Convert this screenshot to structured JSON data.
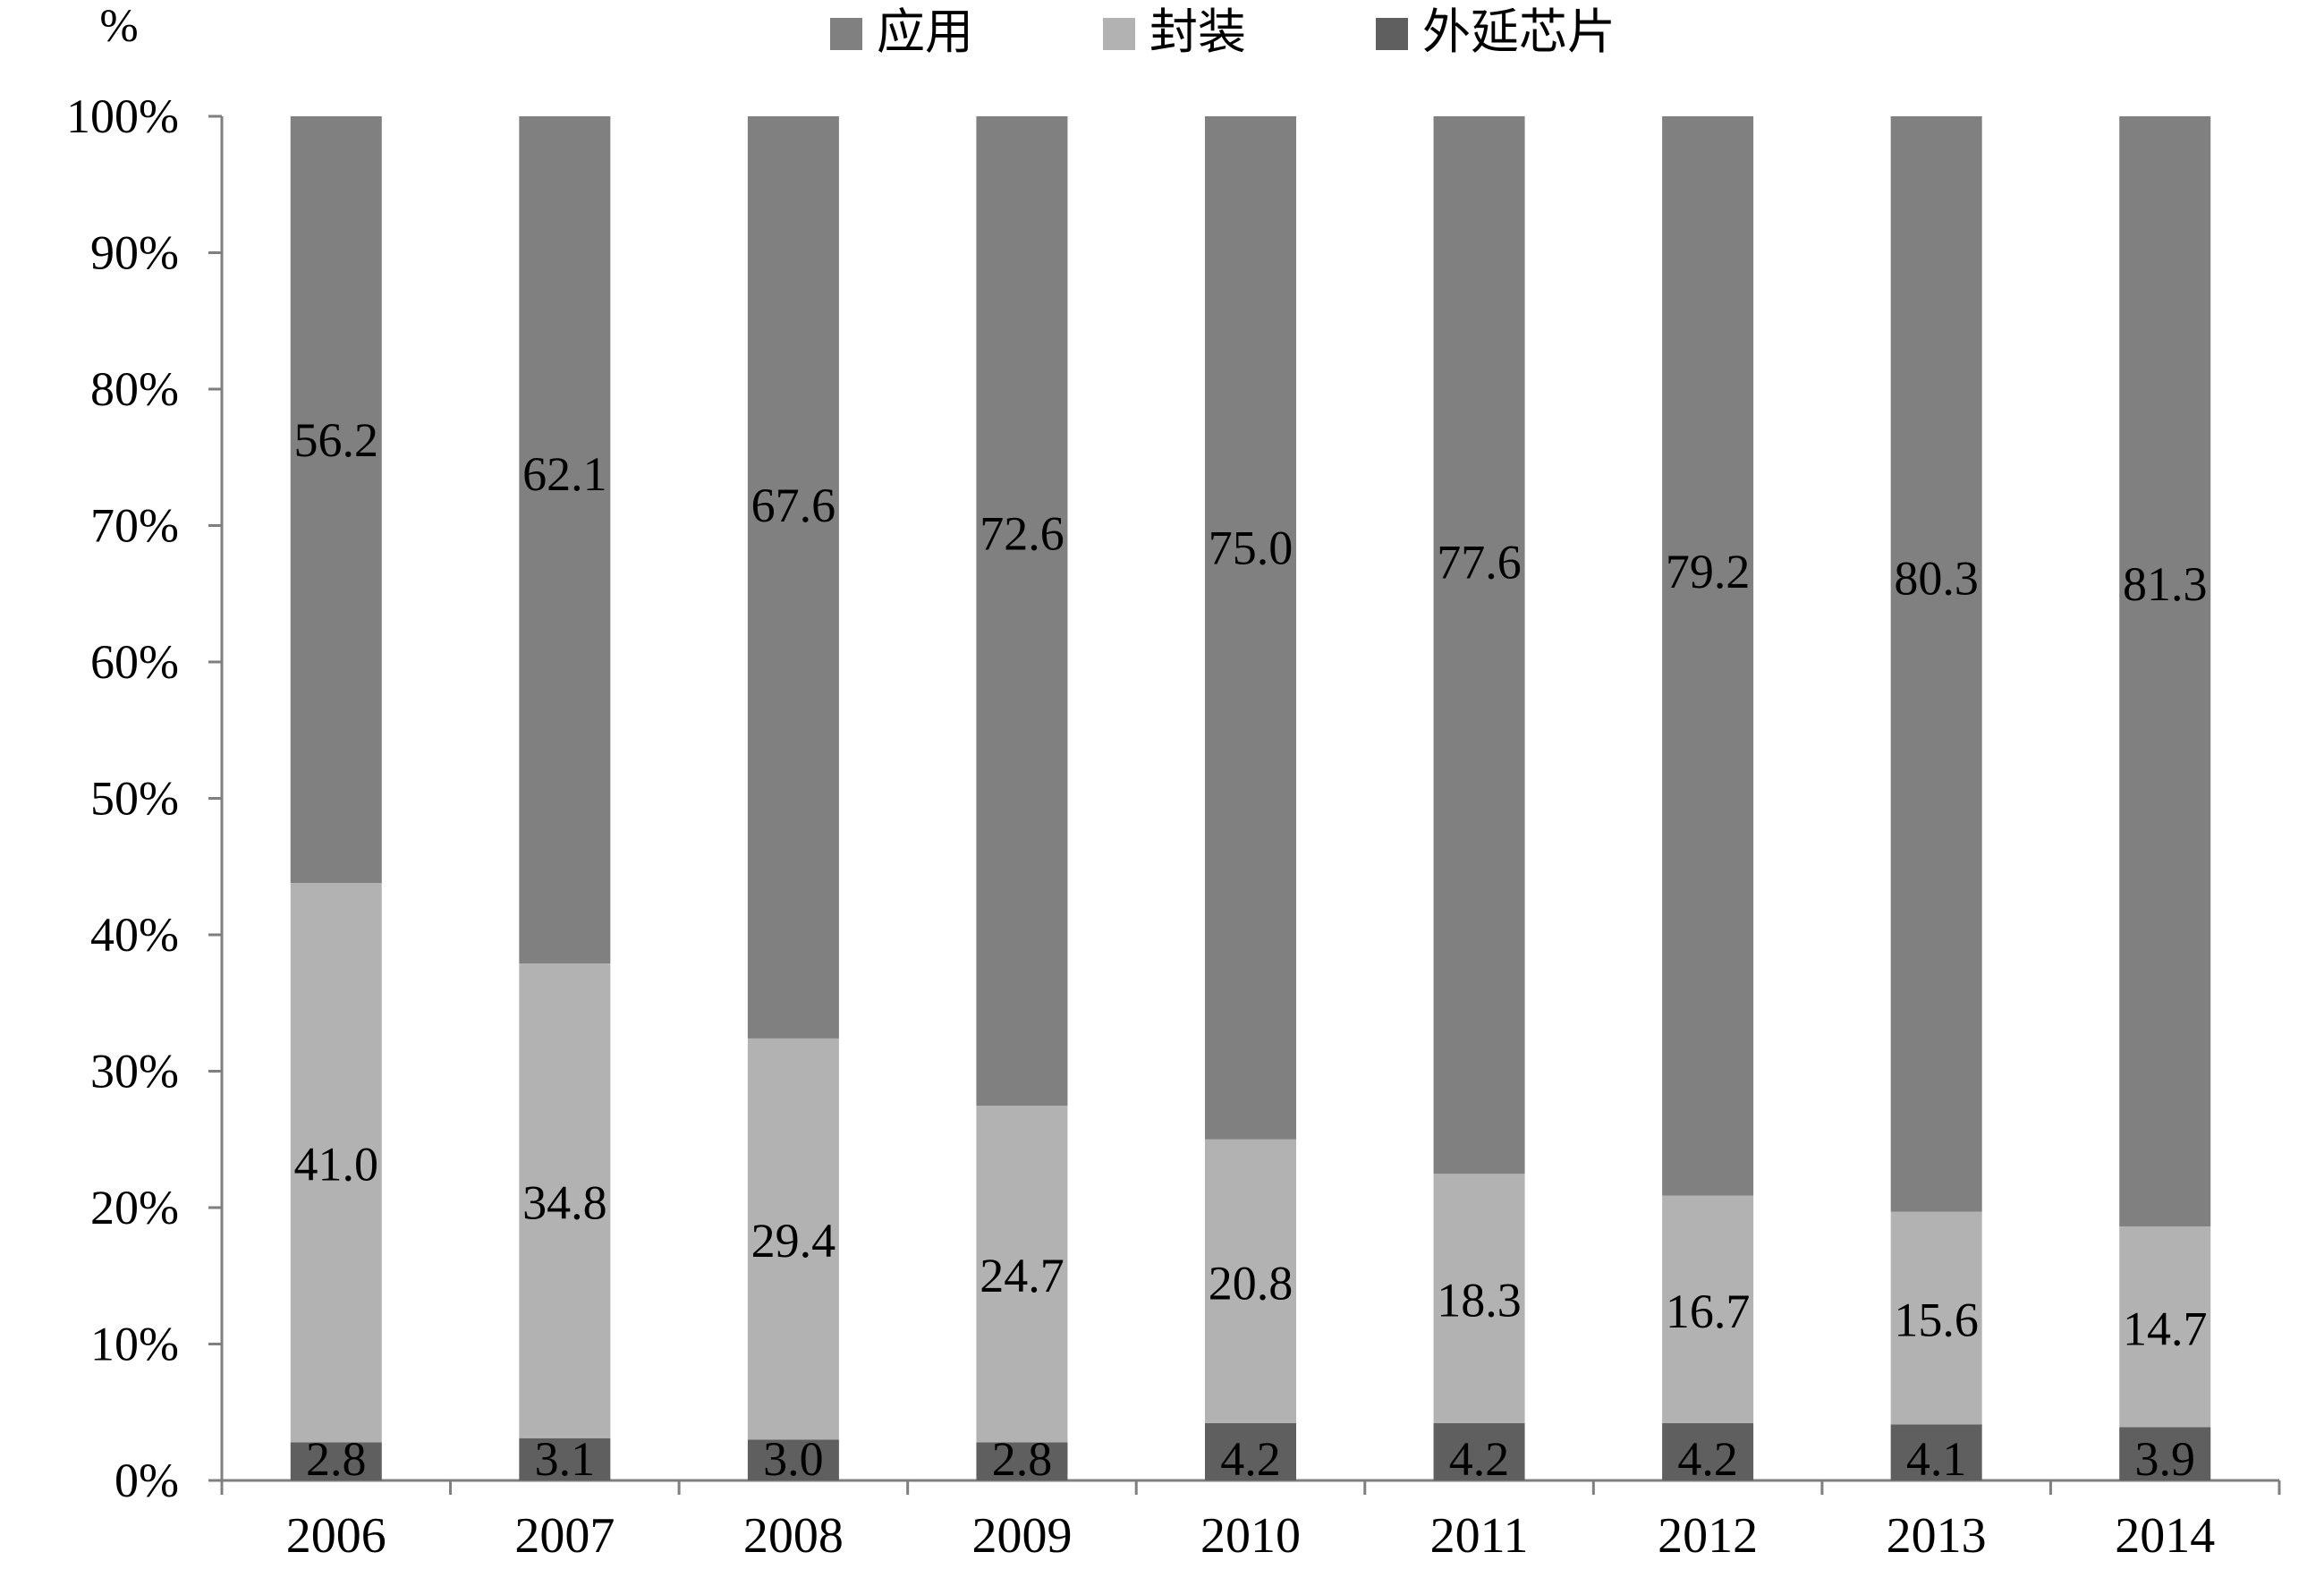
{
  "chart_data": {
    "type": "bar",
    "stacked": true,
    "percent_stacked": true,
    "y_unit_label": "%",
    "categories": [
      "2006",
      "2007",
      "2008",
      "2009",
      "2010",
      "2011",
      "2012",
      "2013",
      "2014"
    ],
    "series": [
      {
        "name": "外延芯片",
        "values": [
          2.8,
          3.1,
          3.0,
          2.8,
          4.2,
          4.2,
          4.2,
          4.1,
          3.9
        ],
        "color": "#5f5f5f"
      },
      {
        "name": "封装",
        "values": [
          41.0,
          34.8,
          29.4,
          24.7,
          20.8,
          18.3,
          16.7,
          15.6,
          14.7
        ],
        "color": "#b2b2b2"
      },
      {
        "name": "应用",
        "values": [
          56.2,
          62.1,
          67.6,
          72.6,
          75.0,
          77.6,
          79.2,
          80.3,
          81.3
        ],
        "color": "#808080"
      }
    ],
    "data_labels": {
      "外延芯片": [
        "2.8",
        "3.1",
        "3.0",
        "2.8",
        "4.2",
        "4.2",
        "4.2",
        "4.1",
        "3.9"
      ],
      "封装": [
        "41.0",
        "34.8",
        "29.4",
        "24.7",
        "20.8",
        "18.3",
        "16.7",
        "15.6",
        "14.7"
      ],
      "应用": [
        "56.2",
        "62.1",
        "67.6",
        "72.6",
        "75.0",
        "77.6",
        "79.2",
        "80.3",
        "81.3"
      ]
    },
    "legend_order": [
      "应用",
      "封装",
      "外延芯片"
    ],
    "legend_position": "top",
    "ylim": [
      0,
      100
    ],
    "y_ticks": [
      "0%",
      "10%",
      "20%",
      "30%",
      "40%",
      "50%",
      "60%",
      "70%",
      "80%",
      "90%",
      "100%"
    ],
    "grid": false
  }
}
